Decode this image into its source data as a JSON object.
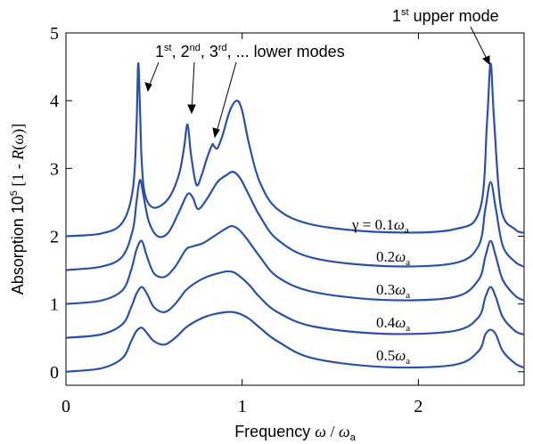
{
  "chart_data": {
    "type": "line",
    "xlabel": {
      "prefix": "Frequency ",
      "var": "ω",
      "sep": " / ",
      "var2": "ω",
      "sub2": "a"
    },
    "ylabel": {
      "prefix": "Absorption 10",
      "sup": "5",
      "mid": " [1 - ",
      "var": "R",
      "arg": "(ω)",
      "suffix": "]"
    },
    "xlim": [
      0,
      2.6
    ],
    "ylim": [
      -0.2,
      5
    ],
    "xticks": [
      0,
      1,
      2
    ],
    "yticks": [
      0,
      1,
      2,
      3,
      4,
      5
    ],
    "grid": false,
    "line_color": "#2c4fa8",
    "series": [
      {
        "label": {
          "prefix": "γ = 0.1",
          "var": "ω",
          "sub": "a"
        },
        "x": [
          0.0,
          0.2,
          0.32,
          0.38,
          0.4,
          0.41,
          0.42,
          0.43,
          0.45,
          0.5,
          0.58,
          0.64,
          0.67,
          0.69,
          0.71,
          0.74,
          0.77,
          0.8,
          0.83,
          0.84,
          0.86,
          0.89,
          0.93,
          0.97,
          1.0,
          1.04,
          1.1,
          1.2,
          1.4,
          1.8,
          2.2,
          2.35,
          2.39,
          2.41,
          2.43,
          2.47,
          2.55,
          2.6
        ],
        "y": [
          2.0,
          2.04,
          2.2,
          2.7,
          3.6,
          4.55,
          3.9,
          3.1,
          2.6,
          2.42,
          2.55,
          2.9,
          3.3,
          3.65,
          3.2,
          2.76,
          2.9,
          3.15,
          3.35,
          3.33,
          3.3,
          3.5,
          3.85,
          4.0,
          3.85,
          3.35,
          2.8,
          2.4,
          2.17,
          2.06,
          2.1,
          2.4,
          3.7,
          4.55,
          3.7,
          2.4,
          2.1,
          2.05
        ]
      },
      {
        "label": {
          "prefix": "0.2",
          "var": "ω",
          "sub": "a"
        },
        "x": [
          0.0,
          0.2,
          0.32,
          0.38,
          0.4,
          0.42,
          0.44,
          0.47,
          0.52,
          0.58,
          0.64,
          0.69,
          0.72,
          0.75,
          0.8,
          0.86,
          0.91,
          0.95,
          0.99,
          1.04,
          1.1,
          1.2,
          1.4,
          1.8,
          2.2,
          2.34,
          2.38,
          2.41,
          2.44,
          2.48,
          2.55,
          2.6
        ],
        "y": [
          1.5,
          1.55,
          1.7,
          2.1,
          2.5,
          2.83,
          2.6,
          2.22,
          2.0,
          2.05,
          2.35,
          2.62,
          2.57,
          2.4,
          2.55,
          2.8,
          2.9,
          2.95,
          2.85,
          2.6,
          2.3,
          1.95,
          1.68,
          1.56,
          1.6,
          1.85,
          2.4,
          2.8,
          2.4,
          1.85,
          1.62,
          1.55
        ]
      },
      {
        "label": {
          "prefix": "0.3",
          "var": "ω",
          "sub": "a"
        },
        "x": [
          0.0,
          0.2,
          0.32,
          0.37,
          0.4,
          0.43,
          0.46,
          0.5,
          0.56,
          0.62,
          0.68,
          0.72,
          0.78,
          0.84,
          0.9,
          0.94,
          0.98,
          1.03,
          1.1,
          1.2,
          1.4,
          1.8,
          2.2,
          2.34,
          2.38,
          2.41,
          2.44,
          2.48,
          2.55,
          2.6
        ],
        "y": [
          1.0,
          1.05,
          1.2,
          1.5,
          1.8,
          1.93,
          1.7,
          1.45,
          1.4,
          1.55,
          1.8,
          1.85,
          1.9,
          2.0,
          2.1,
          2.15,
          2.1,
          1.95,
          1.7,
          1.4,
          1.18,
          1.06,
          1.1,
          1.35,
          1.7,
          1.93,
          1.7,
          1.35,
          1.12,
          1.05
        ]
      },
      {
        "label": {
          "prefix": "0.4",
          "var": "ω",
          "sub": "a"
        },
        "x": [
          0.0,
          0.2,
          0.32,
          0.37,
          0.4,
          0.43,
          0.46,
          0.5,
          0.56,
          0.62,
          0.68,
          0.74,
          0.8,
          0.86,
          0.91,
          0.95,
          0.99,
          1.04,
          1.1,
          1.2,
          1.4,
          1.8,
          2.2,
          2.34,
          2.38,
          2.41,
          2.44,
          2.48,
          2.55,
          2.6
        ],
        "y": [
          0.5,
          0.55,
          0.7,
          0.95,
          1.15,
          1.25,
          1.15,
          0.95,
          0.88,
          1.0,
          1.2,
          1.32,
          1.4,
          1.45,
          1.48,
          1.47,
          1.4,
          1.28,
          1.1,
          0.88,
          0.67,
          0.56,
          0.6,
          0.8,
          1.1,
          1.25,
          1.1,
          0.8,
          0.6,
          0.55
        ]
      },
      {
        "label": {
          "prefix": "0.5",
          "var": "ω",
          "sub": "a"
        },
        "x": [
          0.0,
          0.2,
          0.32,
          0.37,
          0.4,
          0.43,
          0.46,
          0.5,
          0.56,
          0.62,
          0.68,
          0.74,
          0.8,
          0.86,
          0.91,
          0.95,
          0.99,
          1.04,
          1.1,
          1.2,
          1.4,
          1.8,
          2.2,
          2.34,
          2.38,
          2.41,
          2.44,
          2.48,
          2.55,
          2.6
        ],
        "y": [
          0.0,
          0.05,
          0.2,
          0.45,
          0.6,
          0.65,
          0.57,
          0.45,
          0.4,
          0.5,
          0.65,
          0.75,
          0.82,
          0.86,
          0.88,
          0.88,
          0.85,
          0.78,
          0.65,
          0.45,
          0.2,
          0.07,
          0.1,
          0.3,
          0.55,
          0.62,
          0.55,
          0.3,
          0.12,
          0.06
        ]
      }
    ],
    "annotations": {
      "lower_modes": {
        "n1": "1",
        "s1": "st",
        "n2": ", 2",
        "s2": "nd",
        "n3": ", 3",
        "s3": "rd",
        "tail": ", ... lower modes"
      },
      "upper_mode": {
        "n1": "1",
        "s1": "st",
        "tail": " upper mode"
      }
    }
  }
}
